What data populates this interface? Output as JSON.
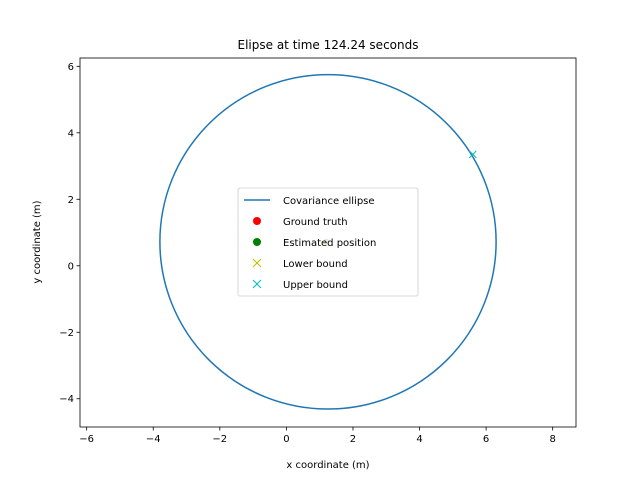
{
  "chart_data": {
    "type": "scatter",
    "title": "Elipse at time 124.24 seconds",
    "xlabel": "x coordinate (m)",
    "ylabel": "y coordinate (m)",
    "xlim": [
      -6.2,
      8.7
    ],
    "ylim": [
      -4.85,
      6.25
    ],
    "xticks": [
      -6,
      -4,
      -2,
      0,
      2,
      4,
      6,
      8
    ],
    "yticks": [
      -4,
      -2,
      0,
      2,
      4,
      6
    ],
    "grid": false,
    "legend_position": "center",
    "ellipse": {
      "name": "Covariance ellipse",
      "center": [
        1.25,
        0.72
      ],
      "radius_x": 5.05,
      "radius_y": 5.03,
      "color": "#1f77b4"
    },
    "series": [
      {
        "name": "Ground truth",
        "marker": "circle",
        "color": "#ff0000",
        "points": [
          [
            1.2,
            0.72
          ]
        ]
      },
      {
        "name": "Estimated position",
        "marker": "circle",
        "color": "#008000",
        "points": [
          [
            1.2,
            0.72
          ]
        ]
      },
      {
        "name": "Lower bound",
        "marker": "x",
        "color": "#bfbf00",
        "points": [
          [
            1.15,
            0.65
          ]
        ]
      },
      {
        "name": "Upper bound",
        "marker": "x",
        "color": "#00bfbf",
        "points": [
          [
            5.6,
            3.35
          ]
        ]
      }
    ]
  }
}
